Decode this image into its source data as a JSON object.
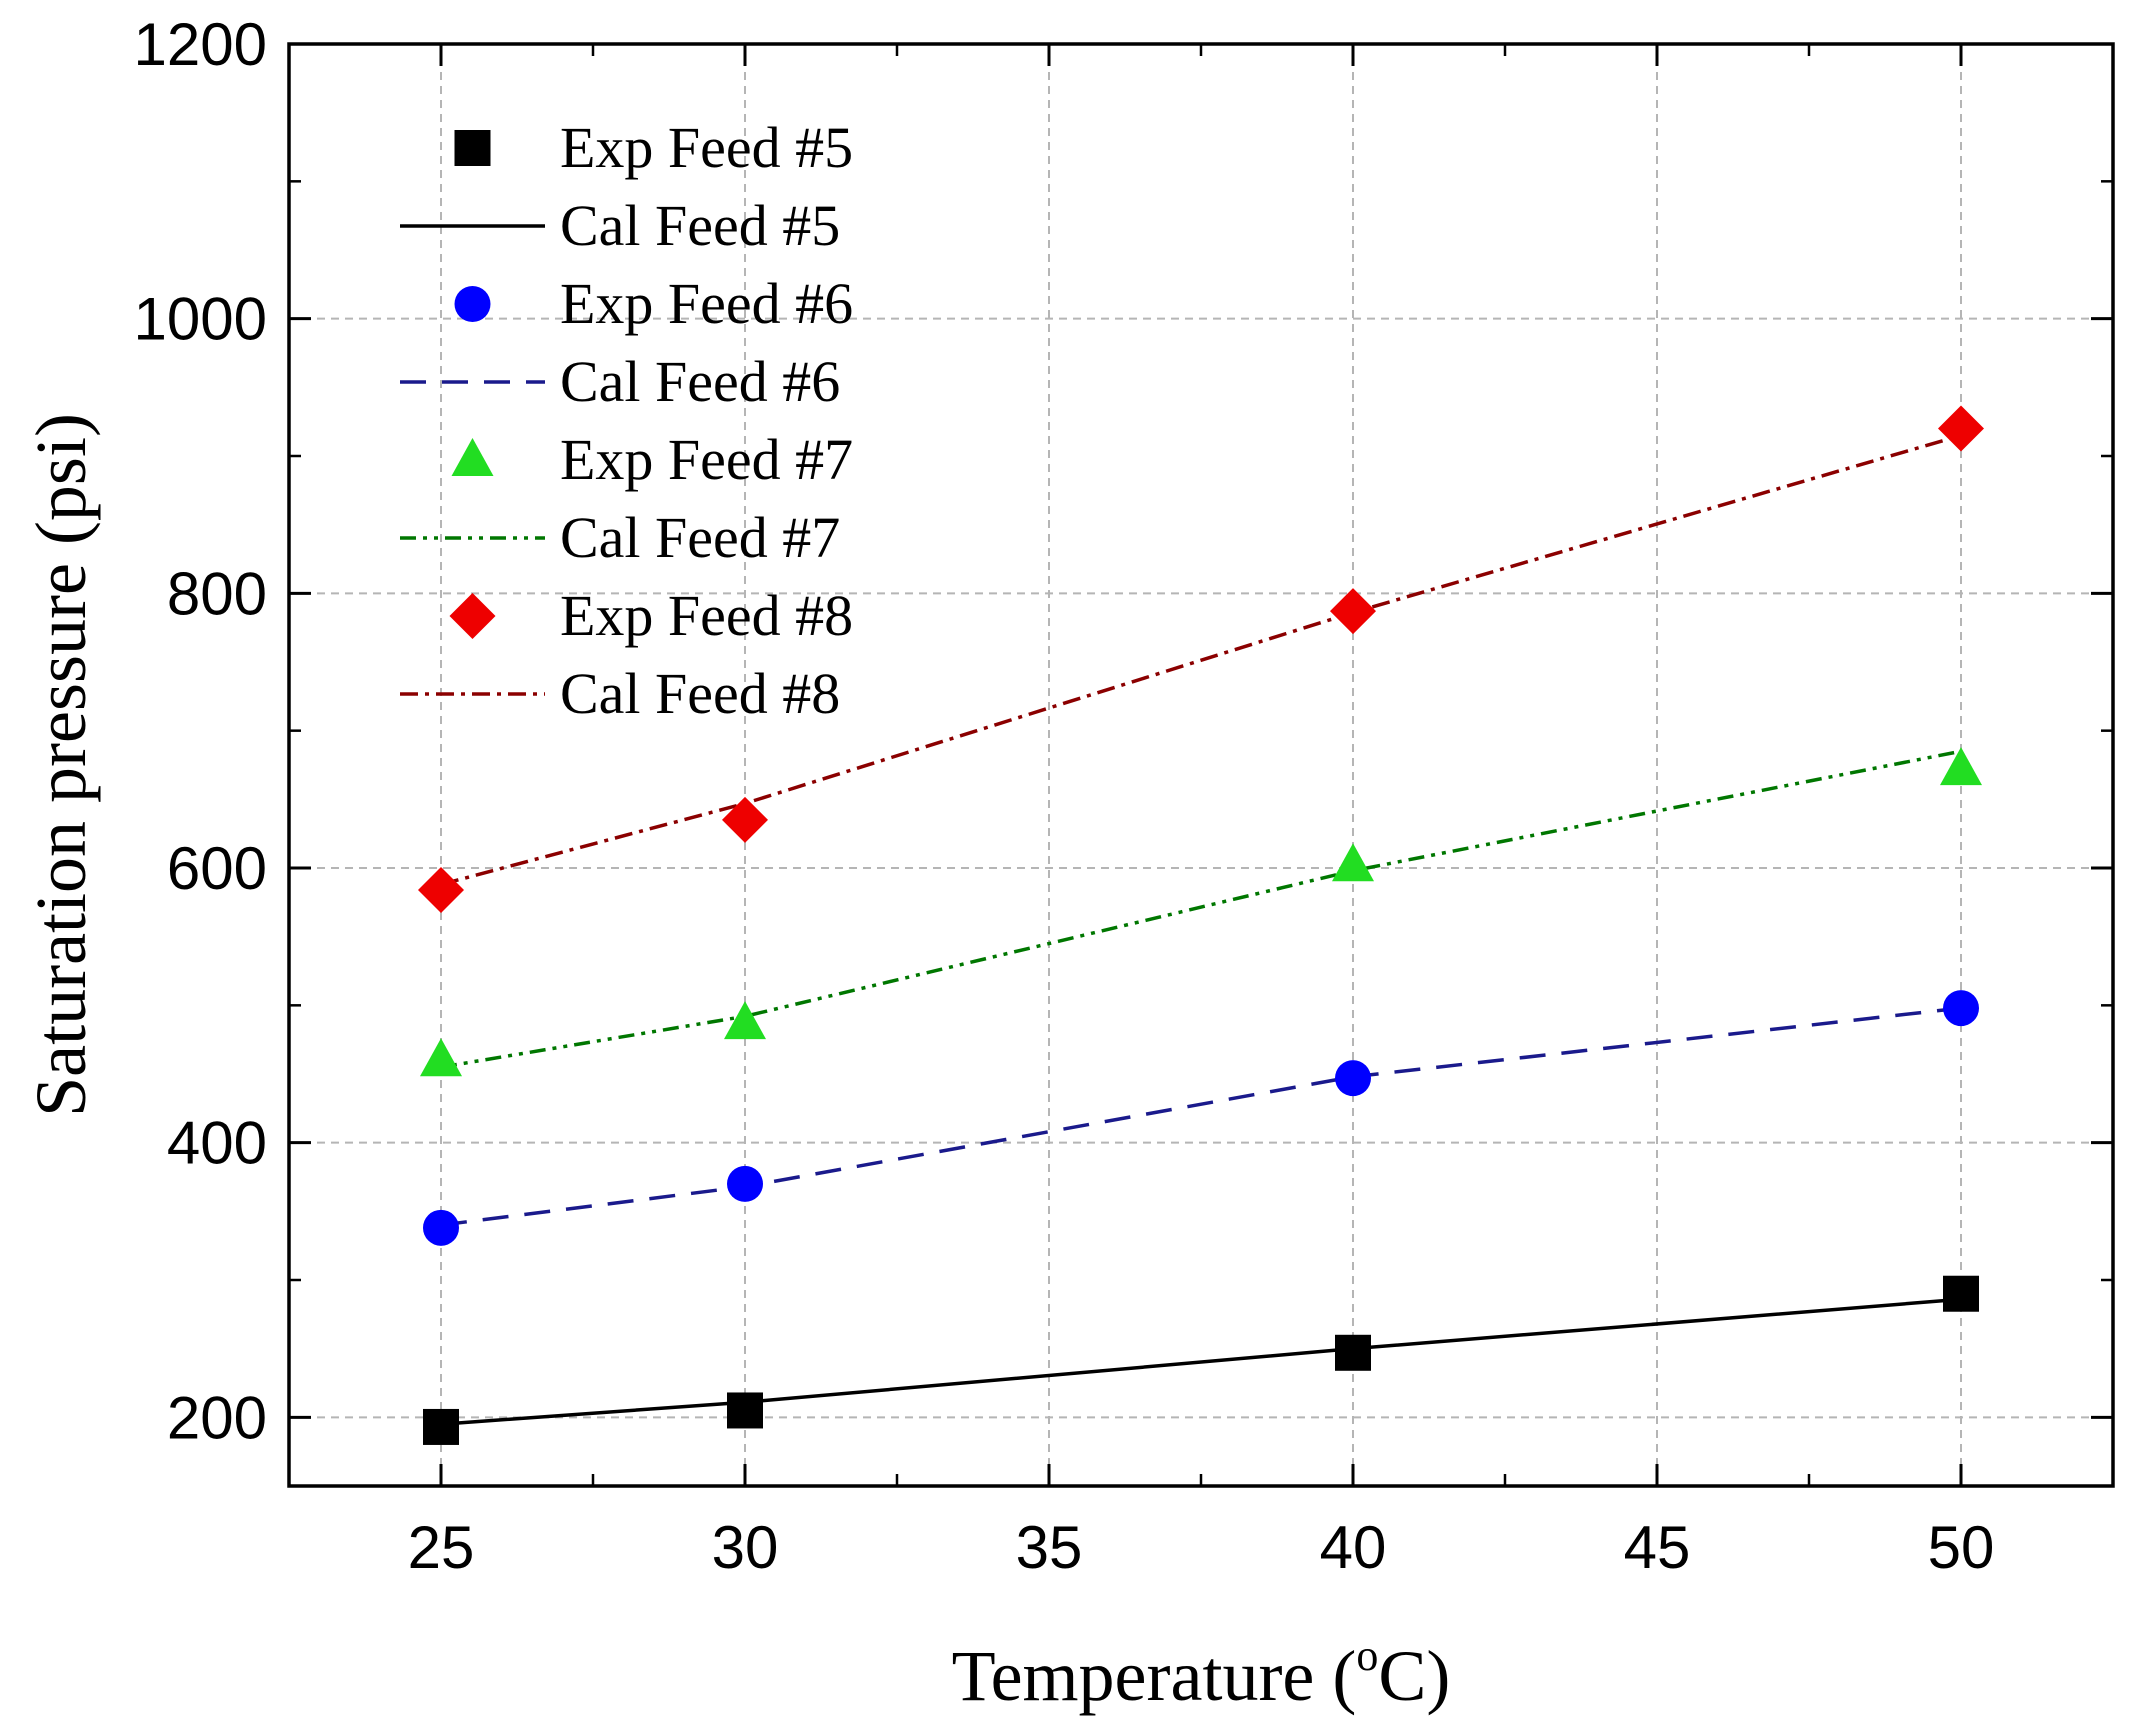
{
  "chart_data": {
    "type": "line",
    "xlabel": "Temperature (",
    "xlabel_sup": "o",
    "xlabel_end": "C)",
    "ylabel": "Saturation pressure (psi)",
    "xlim": [
      22.5,
      52.5
    ],
    "ylim": [
      150,
      1200
    ],
    "xticks": [
      25,
      30,
      35,
      40,
      45,
      50
    ],
    "yticks": [
      200,
      400,
      600,
      800,
      1000,
      1200
    ],
    "x_grid": [
      25,
      30,
      35,
      40,
      45,
      50
    ],
    "y_grid": [
      200,
      400,
      600,
      800,
      1000
    ],
    "x_minor": [
      27.5,
      32.5,
      37.5,
      42.5,
      47.5
    ],
    "y_minor": [
      300,
      500,
      700,
      900,
      1100
    ],
    "grid": true,
    "legend_position": "top-left",
    "series": [
      {
        "name": "Exp Feed #5",
        "kind": "marker",
        "marker": "square",
        "color": "#000000",
        "x": [
          25,
          30,
          40,
          50
        ],
        "y": [
          193,
          205,
          247,
          290
        ]
      },
      {
        "name": "Cal Feed #5",
        "kind": "line",
        "dash": "solid",
        "color": "#000000",
        "x": [
          25,
          30,
          40,
          50
        ],
        "y": [
          195,
          211,
          250,
          286
        ]
      },
      {
        "name": "Exp Feed #6",
        "kind": "marker",
        "marker": "circle",
        "color": "#0000ff",
        "x": [
          25,
          30,
          40,
          50
        ],
        "y": [
          338,
          370,
          447,
          498
        ]
      },
      {
        "name": "Cal Feed #6",
        "kind": "line",
        "dash": "dash",
        "color": "#1a1a8c",
        "x": [
          25,
          30,
          40,
          50
        ],
        "y": [
          340,
          368,
          448,
          498
        ]
      },
      {
        "name": "Exp Feed #7",
        "kind": "marker",
        "marker": "triangle",
        "color": "#22dd22",
        "x": [
          25,
          30,
          40,
          50
        ],
        "y": [
          460,
          487,
          602,
          672
        ]
      },
      {
        "name": "Cal Feed #7",
        "kind": "line",
        "dash": "dashdotdot",
        "color": "#007700",
        "x": [
          25,
          30,
          40,
          50
        ],
        "y": [
          455,
          492,
          598,
          685
        ]
      },
      {
        "name": "Exp Feed #8",
        "kind": "marker",
        "marker": "diamond",
        "color": "#ee0000",
        "x": [
          25,
          30,
          40,
          50
        ],
        "y": [
          584,
          635,
          787,
          920
        ]
      },
      {
        "name": "Cal Feed #8",
        "kind": "line",
        "dash": "dashdot",
        "color": "#8b0000",
        "x": [
          25,
          30,
          40,
          50
        ],
        "y": [
          588,
          647,
          786,
          915
        ]
      }
    ]
  }
}
